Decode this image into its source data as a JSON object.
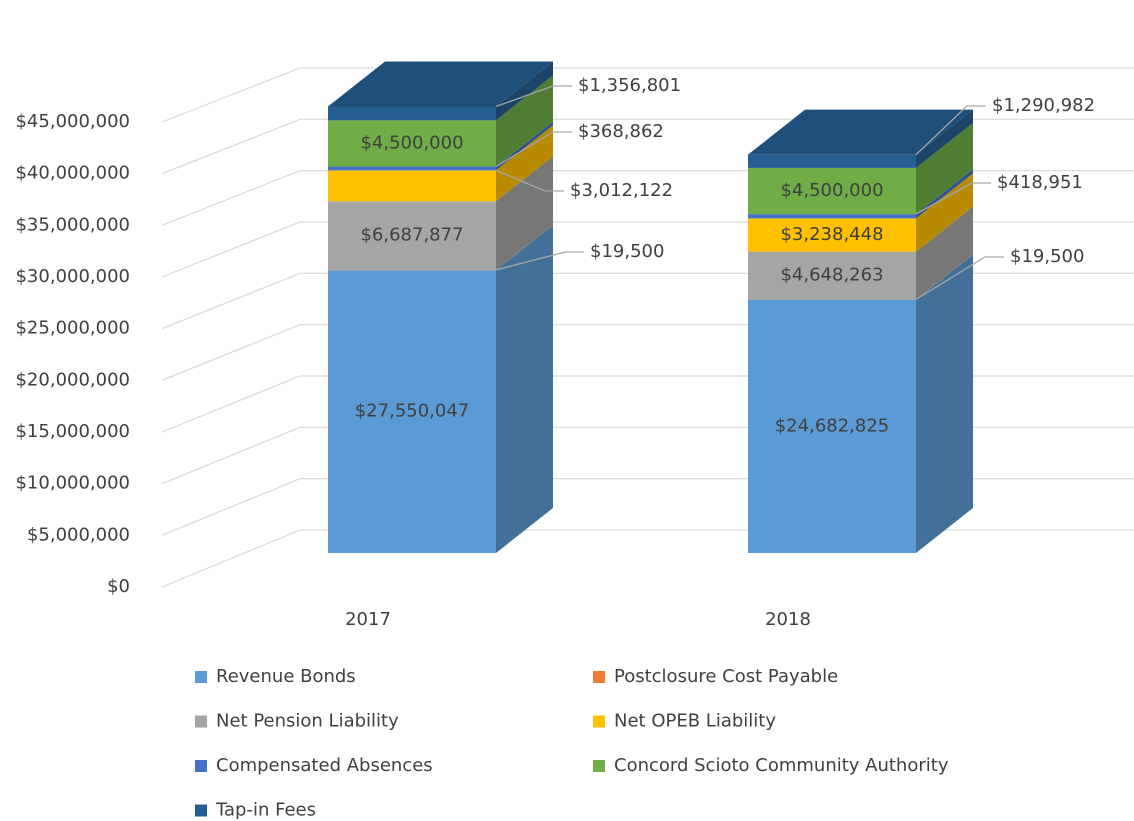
{
  "chart_data": {
    "type": "bar3d_stacked",
    "categories": [
      "2017",
      "2018"
    ],
    "ylim": [
      0,
      45000000
    ],
    "yticks": [
      {
        "value": 0,
        "label": "$0"
      },
      {
        "value": 5000000,
        "label": "$5,000,000"
      },
      {
        "value": 10000000,
        "label": "$10,000,000"
      },
      {
        "value": 15000000,
        "label": "$15,000,000"
      },
      {
        "value": 20000000,
        "label": "$20,000,000"
      },
      {
        "value": 25000000,
        "label": "$25,000,000"
      },
      {
        "value": 30000000,
        "label": "$30,000,000"
      },
      {
        "value": 35000000,
        "label": "$35,000,000"
      },
      {
        "value": 40000000,
        "label": "$40,000,000"
      },
      {
        "value": 45000000,
        "label": "$45,000,000"
      }
    ],
    "grid": true,
    "legend": "bottom",
    "series": [
      {
        "name": "Revenue Bonds",
        "color": "#5b9bd5",
        "values": [
          27550047,
          24682825
        ],
        "value_labels": [
          "$27,550,047",
          "$24,682,825"
        ]
      },
      {
        "name": "Postclosure Cost Payable",
        "color": "#ed7d31",
        "values": [
          19500,
          19500
        ],
        "value_labels": [
          "$19,500",
          "$19,500"
        ]
      },
      {
        "name": "Net Pension Liability",
        "color": "#a5a5a5",
        "values": [
          6687877,
          4648263
        ],
        "value_labels": [
          "$6,687,877",
          "$4,648,263"
        ]
      },
      {
        "name": "Net OPEB Liability",
        "color": "#ffc000",
        "values": [
          3012122,
          3238448
        ],
        "value_labels": [
          "$3,012,122",
          "$3,238,448"
        ]
      },
      {
        "name": "Compensated Absences",
        "color": "#4472c4",
        "values": [
          368862,
          418951
        ],
        "value_labels": [
          "$368,862",
          "$418,951"
        ]
      },
      {
        "name": "Concord Scioto Community Authority",
        "color": "#70ad47",
        "values": [
          4500000,
          4500000
        ],
        "value_labels": [
          "$4,500,000",
          "$4,500,000"
        ]
      },
      {
        "name": "Tap-in Fees",
        "color": "#255e91",
        "values": [
          1356801,
          1290982
        ],
        "value_labels": [
          "$1,356,801",
          "$1,290,982"
        ]
      }
    ]
  }
}
